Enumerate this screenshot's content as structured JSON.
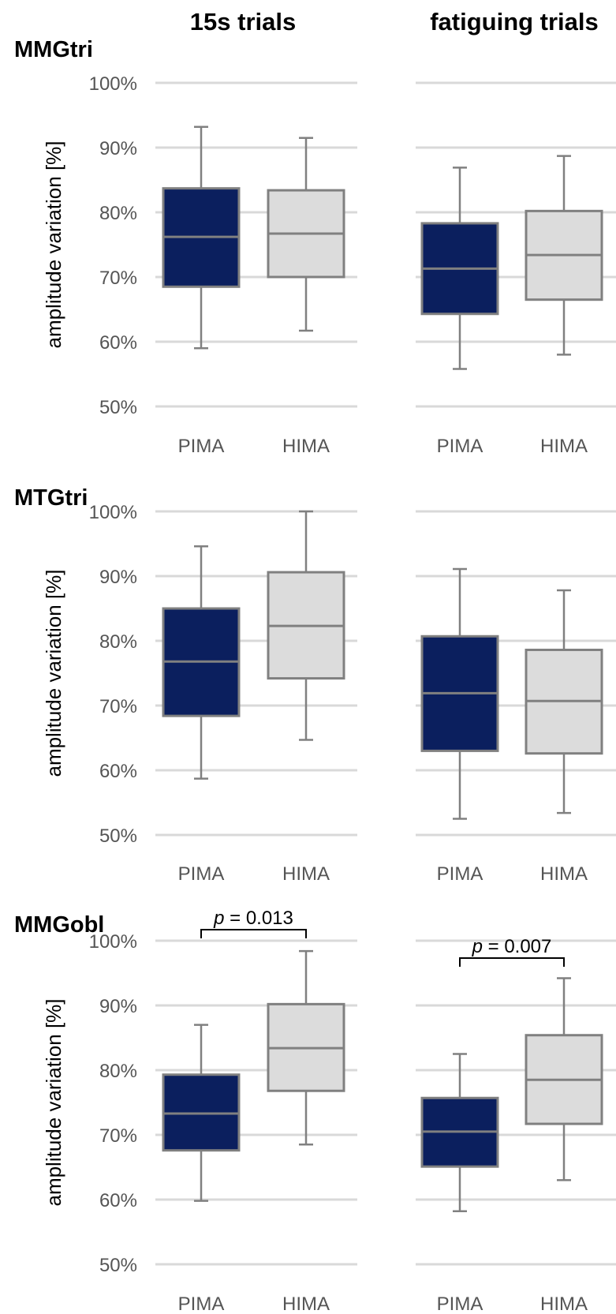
{
  "colors": {
    "PIMA": "#0b1f5e",
    "HIMA": "#dcdcdc",
    "stroke": "#808080",
    "grid": "#d9d9d9"
  },
  "chart_data": [
    {
      "type": "box",
      "row_title": "MMGtri",
      "column_title": "15s  trials",
      "ylabel": "amplitude variation [%]",
      "yticks": [
        "50%",
        "60%",
        "70%",
        "80%",
        "90%",
        "100%"
      ],
      "ylim": [
        50,
        100
      ],
      "grid": true,
      "categories": [
        "PIMA",
        "HIMA"
      ],
      "boxes": [
        {
          "category": "PIMA",
          "min": 59,
          "q1": 68.5,
          "median": 76.2,
          "q3": 83.7,
          "max": 93.2
        },
        {
          "category": "HIMA",
          "min": 61.7,
          "q1": 70,
          "median": 76.7,
          "q3": 83.4,
          "max": 91.5
        }
      ]
    },
    {
      "type": "box",
      "row_title": "MMGtri",
      "column_title": "fatiguing trials",
      "ylim": [
        50,
        100
      ],
      "grid": true,
      "categories": [
        "PIMA",
        "HIMA"
      ],
      "boxes": [
        {
          "category": "PIMA",
          "min": 55.8,
          "q1": 64.3,
          "median": 71.3,
          "q3": 78.3,
          "max": 86.9
        },
        {
          "category": "HIMA",
          "min": 58,
          "q1": 66.5,
          "median": 73.4,
          "q3": 80.2,
          "max": 88.7
        }
      ]
    },
    {
      "type": "box",
      "row_title": "MTGtri",
      "column_title": "15s  trials",
      "ylabel": "amplitude variation [%]",
      "yticks": [
        "50%",
        "60%",
        "70%",
        "80%",
        "90%",
        "100%"
      ],
      "ylim": [
        50,
        100
      ],
      "grid": true,
      "categories": [
        "PIMA",
        "HIMA"
      ],
      "boxes": [
        {
          "category": "PIMA",
          "min": 58.7,
          "q1": 68.4,
          "median": 76.8,
          "q3": 85,
          "max": 94.6
        },
        {
          "category": "HIMA",
          "min": 64.7,
          "q1": 74.2,
          "median": 82.3,
          "q3": 90.6,
          "max": 100
        }
      ]
    },
    {
      "type": "box",
      "row_title": "MTGtri",
      "column_title": "fatiguing trials",
      "ylim": [
        50,
        100
      ],
      "grid": true,
      "categories": [
        "PIMA",
        "HIMA"
      ],
      "boxes": [
        {
          "category": "PIMA",
          "min": 52.5,
          "q1": 63,
          "median": 71.9,
          "q3": 80.7,
          "max": 91.1
        },
        {
          "category": "HIMA",
          "min": 53.4,
          "q1": 62.6,
          "median": 70.7,
          "q3": 78.6,
          "max": 87.8
        }
      ]
    },
    {
      "type": "box",
      "row_title": "MMGobl",
      "column_title": "15s  trials",
      "ylabel": "amplitude variation [%]",
      "yticks": [
        "50%",
        "60%",
        "70%",
        "80%",
        "90%",
        "100%"
      ],
      "ylim": [
        50,
        100
      ],
      "grid": true,
      "categories": [
        "PIMA",
        "HIMA"
      ],
      "boxes": [
        {
          "category": "PIMA",
          "min": 59.8,
          "q1": 67.6,
          "median": 73.3,
          "q3": 79.3,
          "max": 87
        },
        {
          "category": "HIMA",
          "min": 68.5,
          "q1": 76.8,
          "median": 83.4,
          "q3": 90.2,
          "max": 98.4
        }
      ],
      "annotation": {
        "text_p": "p",
        "text_rest": " = 0.013"
      }
    },
    {
      "type": "box",
      "row_title": "MMGobl",
      "column_title": "fatiguing trials",
      "ylim": [
        50,
        100
      ],
      "grid": true,
      "categories": [
        "PIMA",
        "HIMA"
      ],
      "boxes": [
        {
          "category": "PIMA",
          "min": 58.2,
          "q1": 65.1,
          "median": 70.5,
          "q3": 75.7,
          "max": 82.5
        },
        {
          "category": "HIMA",
          "min": 63,
          "q1": 71.7,
          "median": 78.5,
          "q3": 85.4,
          "max": 94.2
        }
      ],
      "annotation": {
        "text_p": "p",
        "text_rest": " = 0.007"
      }
    }
  ]
}
